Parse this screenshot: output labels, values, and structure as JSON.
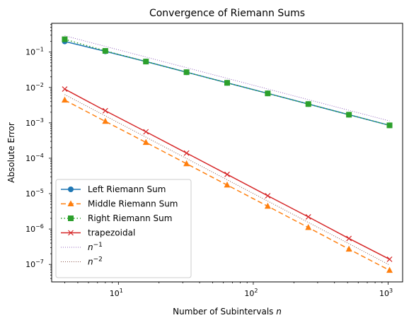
{
  "chart_data": {
    "type": "line",
    "title": "Convergence of Riemann Sums",
    "xlabel": "Number of Subintervals n",
    "ylabel": "Absolute Error",
    "xscale": "log",
    "yscale": "log",
    "xlim": [
      3.2,
      1280
    ],
    "ylim": [
      3.2e-08,
      0.65
    ],
    "legend": "lower-left",
    "x_ticks": [
      {
        "value": 10,
        "base": "10",
        "exp": "1"
      },
      {
        "value": 100,
        "base": "10",
        "exp": "2"
      },
      {
        "value": 1000,
        "base": "10",
        "exp": "3"
      }
    ],
    "y_ticks": [
      {
        "value": 1e-07,
        "base": "10",
        "exp": "−7"
      },
      {
        "value": 1e-06,
        "base": "10",
        "exp": "−6"
      },
      {
        "value": 1e-05,
        "base": "10",
        "exp": "−5"
      },
      {
        "value": 0.0001,
        "base": "10",
        "exp": "−4"
      },
      {
        "value": 0.001,
        "base": "10",
        "exp": "−3"
      },
      {
        "value": 0.01,
        "base": "10",
        "exp": "−2"
      },
      {
        "value": 0.1,
        "base": "10",
        "exp": "−1"
      }
    ],
    "x": [
      4,
      8,
      16,
      32,
      64,
      128,
      256,
      512,
      1024
    ],
    "series": [
      {
        "name": "Left Riemann Sum",
        "color": "#1f77b4",
        "dash": "",
        "marker": "circle",
        "values": [
          0.2,
          0.105,
          0.054,
          0.027,
          0.0135,
          0.0068,
          0.0034,
          0.0017,
          0.00085
        ]
      },
      {
        "name": "Middle Riemann Sum",
        "color": "#ff7f0e",
        "dash": "7,4",
        "marker": "triangle",
        "values": [
          0.0044,
          0.0011,
          0.00028,
          7e-05,
          1.75e-05,
          4.4e-06,
          1.1e-06,
          2.7e-07,
          6.8e-08
        ]
      },
      {
        "name": "Right Riemann Sum",
        "color": "#2ca02c",
        "dash": "1.5,3",
        "marker": "square",
        "values": [
          0.23,
          0.108,
          0.054,
          0.027,
          0.0135,
          0.0068,
          0.0034,
          0.0017,
          0.00085
        ]
      },
      {
        "name": "trapezoidal",
        "color": "#d62728",
        "dash": "",
        "marker": "x",
        "values": [
          0.009,
          0.0022,
          0.00056,
          0.00014,
          3.5e-05,
          8.7e-06,
          2.2e-06,
          5.4e-07,
          1.4e-07
        ]
      }
    ],
    "reference_lines": [
      {
        "name": "n",
        "exp": "−1",
        "color": "#9467bd",
        "x": [
          4,
          1024
        ],
        "values": [
          0.29,
          0.00113
        ]
      },
      {
        "name": "n",
        "exp": "−2",
        "color": "#8c564b",
        "x": [
          4,
          1024
        ],
        "values": [
          0.0063,
          9.6e-08
        ]
      }
    ]
  }
}
